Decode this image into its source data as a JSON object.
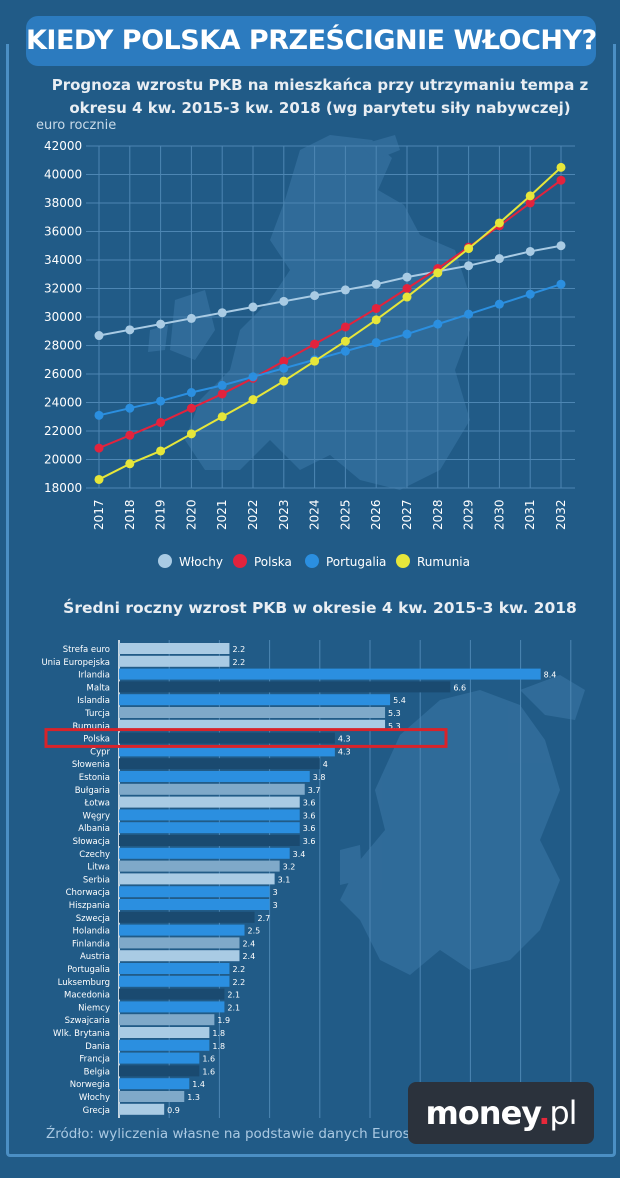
{
  "title": "KIEDY POLSKA PRZEŚCIGNIE WŁOCHY?",
  "logo": {
    "main": "money",
    "dot": ".",
    "tld": "pl"
  },
  "source": "Źródło: wyliczenia własne na podstawie danych Eurostatu",
  "colors": {
    "background": "#215b87",
    "banner": "#2c7bbf",
    "wlochy": "#a9cbe4",
    "polska": "#e2233d",
    "portugalia": "#2b8fe0",
    "rumunia": "#e6e63a",
    "highlight": "#d8232a"
  },
  "chart_data": [
    {
      "type": "line",
      "title": "Prognoza wzrostu PKB na mieszkańca przy utrzymaniu tempa z okresu 4 kw. 2015-3 kw. 2018 (wg parytetu siły nabywczej)",
      "title_lines": [
        "Prognoza wzrostu PKB na mieszkańca przy utrzymaniu tempa z",
        "okresu 4 kw. 2015-3 kw. 2018 (wg parytetu siły nabywczej)"
      ],
      "ylabel": "euro rocznie",
      "ylim": [
        18000,
        42000
      ],
      "yticks": [
        "42000",
        "40000",
        "38000",
        "36000",
        "34000",
        "32000",
        "30000",
        "28000",
        "26000",
        "24000",
        "22000",
        "20000",
        "18000"
      ],
      "ytick_values": [
        42000,
        40000,
        38000,
        36000,
        34000,
        32000,
        30000,
        28000,
        26000,
        24000,
        22000,
        20000,
        18000
      ],
      "x": [
        "2017",
        "2018",
        "2019",
        "2020",
        "2021",
        "2022",
        "2023",
        "2024",
        "2025",
        "2026",
        "2027",
        "2028",
        "2029",
        "2030",
        "2031",
        "2032"
      ],
      "grid": true,
      "legend": "bottom",
      "series": [
        {
          "name": "Włochy",
          "color": "#a9cbe4",
          "values": [
            28700,
            29100,
            29500,
            29900,
            30300,
            30700,
            31100,
            31500,
            31900,
            32300,
            32800,
            33200,
            33600,
            34100,
            34600,
            35000
          ]
        },
        {
          "name": "Polska",
          "color": "#e2233d",
          "values": [
            20800,
            21700,
            22600,
            23600,
            24600,
            25700,
            26900,
            28100,
            29300,
            30600,
            32000,
            33400,
            34900,
            36400,
            38000,
            39600
          ]
        },
        {
          "name": "Portugalia",
          "color": "#2b8fe0",
          "values": [
            23100,
            23600,
            24100,
            24700,
            25200,
            25800,
            26400,
            27000,
            27600,
            28200,
            28800,
            29500,
            30200,
            30900,
            31600,
            32300
          ]
        },
        {
          "name": "Rumunia",
          "color": "#e6e63a",
          "values": [
            18600,
            19700,
            20600,
            21800,
            23000,
            24200,
            25500,
            26900,
            28300,
            29800,
            31400,
            33100,
            34800,
            36600,
            38500,
            40500
          ]
        }
      ]
    },
    {
      "type": "bar",
      "orientation": "horizontal",
      "title": "Średni roczny wzrost PKB w okresie 4 kw. 2015-3 kw. 2018",
      "xlim": [
        0,
        9
      ],
      "grid": true,
      "highlight": "Polska",
      "categories": [
        "Strefa euro",
        "Unia Europejska",
        "Irlandia",
        "Malta",
        "Islandia",
        "Turcja",
        "Rumunia",
        "Polska",
        "Cypr",
        "Słowenia",
        "Estonia",
        "Bułgaria",
        "Łotwa",
        "Węgry",
        "Albania",
        "Słowacja",
        "Czechy",
        "Litwa",
        "Serbia",
        "Chorwacja",
        "Hiszpania",
        "Szwecja",
        "Holandia",
        "Finlandia",
        "Austria",
        "Portugalia",
        "Luksemburg",
        "Macedonia",
        "Niemcy",
        "Szwajcaria",
        "Wlk. Brytania",
        "Dania",
        "Francja",
        "Belgia",
        "Norwegia",
        "Włochy",
        "Grecja"
      ],
      "values": [
        2.2,
        2.2,
        8.4,
        6.6,
        5.4,
        5.3,
        5.3,
        4.3,
        4.3,
        4,
        3.8,
        3.7,
        3.6,
        3.6,
        3.6,
        3.6,
        3.4,
        3.2,
        3.1,
        3,
        3,
        2.7,
        2.5,
        2.4,
        2.4,
        2.2,
        2.2,
        2.1,
        2.1,
        1.9,
        1.8,
        1.8,
        1.6,
        1.6,
        1.4,
        1.3,
        0.9
      ],
      "value_labels": [
        "2.2",
        "2.2",
        "8.4",
        "6.6",
        "5.4",
        "5.3",
        "5.3",
        "4.3",
        "4.3",
        "4",
        "3.8",
        "3.7",
        "3.6",
        "3.6",
        "3.6",
        "3.6",
        "3.4",
        "3.2",
        "3.1",
        "3",
        "3",
        "2.7",
        "2.5",
        "2.4",
        "2.4",
        "2.2",
        "2.2",
        "2.1",
        "2.1",
        "1.9",
        "1.8",
        "1.8",
        "1.6",
        "1.6",
        "1.4",
        "1.3",
        "0.9"
      ],
      "bar_colors": [
        "#a9cbe4",
        "#a9cbe4",
        "#2b8fe0",
        "#1a4a70",
        "#2b8fe0",
        "#7fa9c9",
        "#a9cbe4",
        "#1a4a70",
        "#2b8fe0",
        "#1a4a70",
        "#2b8fe0",
        "#7fa9c9",
        "#a9cbe4",
        "#2b8fe0",
        "#2b8fe0",
        "#1a4a70",
        "#2b8fe0",
        "#7fa9c9",
        "#a9cbe4",
        "#2b8fe0",
        "#2b8fe0",
        "#1a4a70",
        "#2b8fe0",
        "#7fa9c9",
        "#a9cbe4",
        "#2b8fe0",
        "#2b8fe0",
        "#1a4a70",
        "#2b8fe0",
        "#7fa9c9",
        "#a9cbe4",
        "#2b8fe0",
        "#2b8fe0",
        "#1a4a70",
        "#2b8fe0",
        "#7fa9c9",
        "#a9cbe4"
      ]
    }
  ]
}
